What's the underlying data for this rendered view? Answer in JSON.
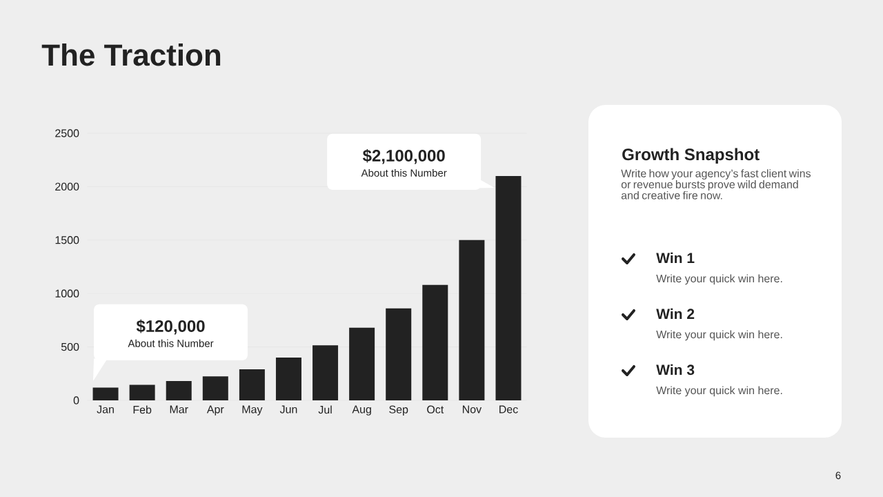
{
  "chart_data": [
    {
      "type": "bar",
      "title": "The Traction",
      "categories": [
        "Jan",
        "Feb",
        "Mar",
        "Apr",
        "May",
        "Jun",
        "Jul",
        "Aug",
        "Sep",
        "Oct",
        "Nov",
        "Dec"
      ],
      "values": [
        120,
        145,
        180,
        225,
        290,
        400,
        515,
        680,
        860,
        1080,
        1500,
        2100
      ],
      "color": "#222222",
      "ylim": [
        0,
        2500
      ],
      "yticks": [
        0,
        500,
        1000,
        1500,
        2000,
        2500
      ],
      "grid": "y",
      "annotations": [
        "$120,000",
        "About this Number",
        "$2,100,000",
        "About this Number"
      ]
    },
    {
      "type": "other",
      "title": "Growth Snapshot",
      "subtitle": "Write how your agency’s fast client wins or revenue bursts prove wild demand and creative fire now.",
      "annotations": [
        "Win 1",
        "Write your quick win here.",
        "Win 2",
        "Write your quick win here.",
        "Win 3",
        "Write your quick win here.",
        "6"
      ]
    }
  ]
}
